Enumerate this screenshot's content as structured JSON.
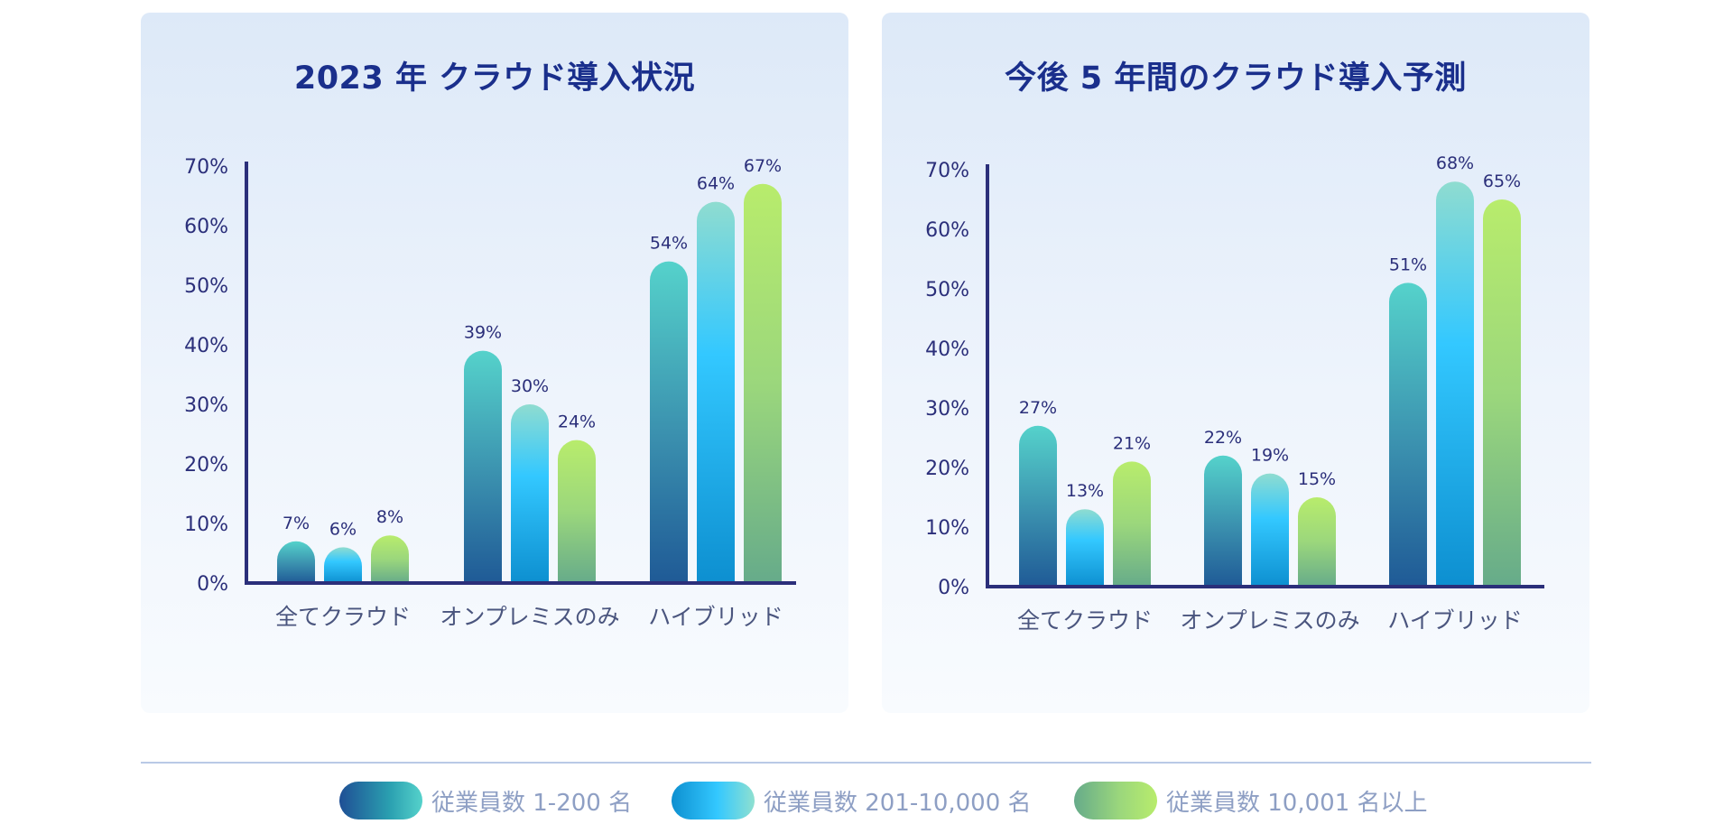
{
  "chart_data": [
    {
      "type": "bar",
      "title": "2023 年 クラウド導入状況",
      "categories": [
        "全てクラウド",
        "オンプレミスのみ",
        "ハイブリッド"
      ],
      "series": [
        {
          "name": "従業員数 1-200 名",
          "values": [
            7,
            39,
            54
          ]
        },
        {
          "name": "従業員数 201-10,000 名",
          "values": [
            6,
            30,
            64
          ]
        },
        {
          "name": "従業員数 10,001 名以上",
          "values": [
            8,
            24,
            67
          ]
        }
      ],
      "value_labels": [
        [
          "7%",
          "39%",
          "54%"
        ],
        [
          "6%",
          "30%",
          "64%"
        ],
        [
          "8%",
          "24%",
          "67%"
        ]
      ],
      "yticks": [
        "0%",
        "10%",
        "20%",
        "30%",
        "40%",
        "50%",
        "60%",
        "70%"
      ],
      "ylim": [
        0,
        70
      ],
      "grid": false
    },
    {
      "type": "bar",
      "title": "今後 5 年間のクラウド導入予測",
      "categories": [
        "全てクラウド",
        "オンプレミスのみ",
        "ハイブリッド"
      ],
      "series": [
        {
          "name": "従業員数 1-200 名",
          "values": [
            27,
            22,
            51
          ]
        },
        {
          "name": "従業員数 201-10,000 名",
          "values": [
            13,
            19,
            68
          ]
        },
        {
          "name": "従業員数 10,001 名以上",
          "values": [
            21,
            15,
            65
          ]
        }
      ],
      "value_labels": [
        [
          "27%",
          "22%",
          "51%"
        ],
        [
          "13%",
          "19%",
          "68%"
        ],
        [
          "21%",
          "15%",
          "65%"
        ]
      ],
      "yticks": [
        "0%",
        "10%",
        "20%",
        "30%",
        "40%",
        "50%",
        "60%",
        "70%"
      ],
      "ylim": [
        0,
        70
      ],
      "grid": false
    }
  ],
  "legend": [
    {
      "label": "従業員数 1-200 名",
      "color": "#2a9fb0"
    },
    {
      "label": "従業員数 201-10,000 名",
      "color": "#33c8ff"
    },
    {
      "label": "従業員数 10,001 名以上",
      "color": "#9bd77c"
    }
  ],
  "colors": {
    "title": "#1a2f8c",
    "axis": "#2b2f7a",
    "tick_label": "#2b2f7a",
    "value_label": "#2b2f7a",
    "category_label": "#4a557e"
  }
}
